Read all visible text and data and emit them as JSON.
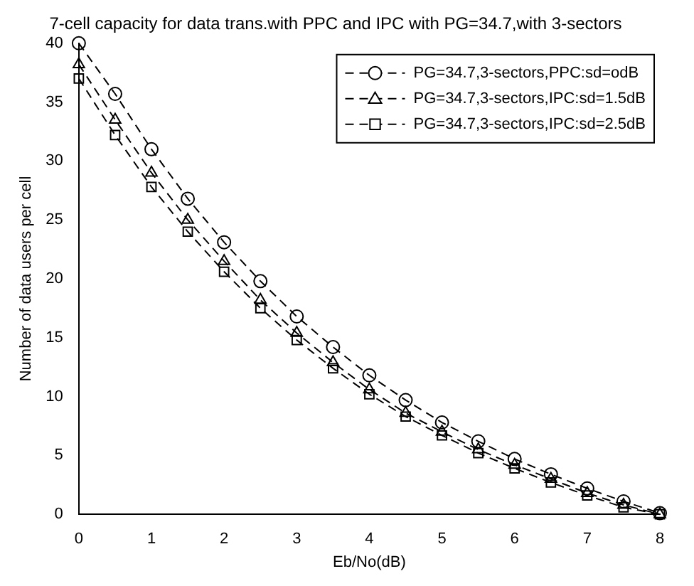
{
  "chart_data": {
    "type": "line",
    "title": "7-cell capacity for data trans.with PPC and IPC with PG=34.7,with 3-sectors",
    "xlabel": "Eb/No(dB)",
    "ylabel": "Number of data users per cell",
    "x": [
      0,
      0.5,
      1,
      1.5,
      2,
      2.5,
      3,
      3.5,
      4,
      4.5,
      5,
      5.5,
      6,
      6.5,
      7,
      7.5,
      8
    ],
    "series": [
      {
        "name": "PG=34.7,3-sectors,PPC:sd=odB",
        "color": "#000000",
        "marker": "circle",
        "values": [
          40,
          35.7,
          31,
          26.8,
          23.1,
          19.8,
          16.8,
          14.2,
          11.8,
          9.7,
          7.8,
          6.2,
          4.7,
          3.4,
          2.2,
          1.1,
          0.1
        ]
      },
      {
        "name": "PG=34.7,3-sectors,IPC:sd=1.5dB",
        "color": "#000000",
        "marker": "triangle",
        "values": [
          38.2,
          33.5,
          29,
          25,
          21.5,
          18.2,
          15.4,
          12.9,
          10.6,
          8.6,
          7,
          5.5,
          4.2,
          3,
          1.8,
          0.8,
          0
        ]
      },
      {
        "name": "PG=34.7,3-sectors,IPC:sd=2.5dB",
        "color": "#000000",
        "marker": "square",
        "values": [
          37,
          32.2,
          27.8,
          24,
          20.6,
          17.5,
          14.8,
          12.4,
          10.2,
          8.3,
          6.7,
          5.2,
          3.9,
          2.7,
          1.6,
          0.6,
          0
        ]
      }
    ],
    "xlim": [
      0,
      8
    ],
    "xticks": [
      0,
      1,
      2,
      3,
      4,
      5,
      6,
      7,
      8
    ],
    "ylim": [
      0,
      40
    ],
    "yticks": [
      0,
      5,
      10,
      15,
      20,
      25,
      30,
      35,
      40
    ],
    "grid": false,
    "legend": "top right",
    "line_style": "dashed"
  }
}
